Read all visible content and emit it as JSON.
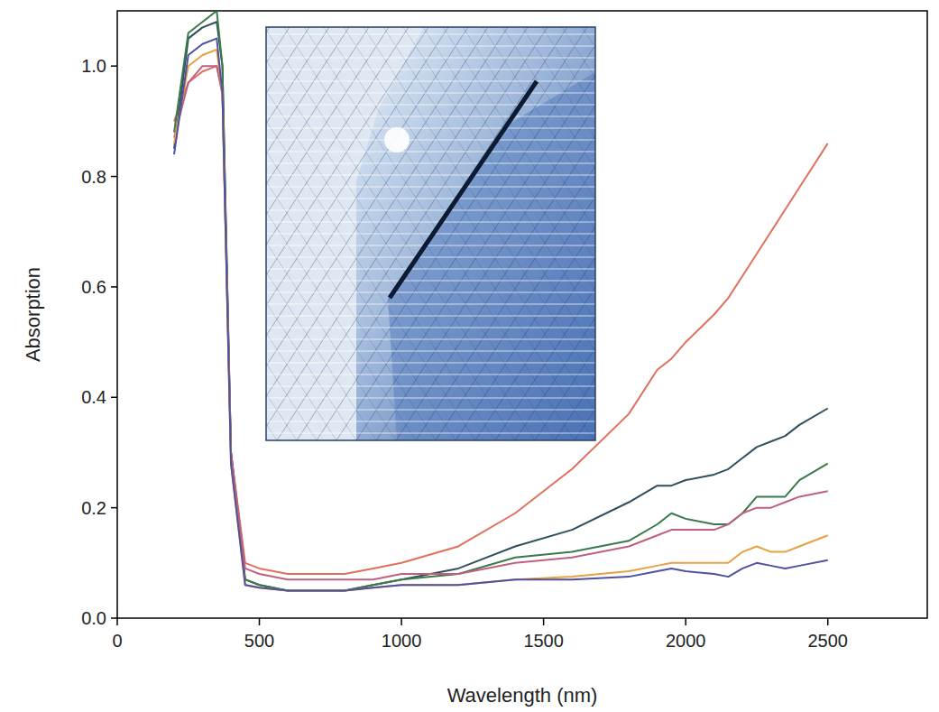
{
  "chart_data": {
    "type": "line",
    "x_label": "Wavelength (nm)",
    "y_label": "Absorption",
    "x": [
      200,
      250,
      300,
      350,
      370,
      400,
      450,
      500,
      600,
      700,
      800,
      900,
      1000,
      1200,
      1400,
      1600,
      1800,
      1900,
      1950,
      2000,
      2100,
      2150,
      2200,
      2250,
      2300,
      2350,
      2400,
      2500
    ],
    "series": [
      {
        "color": "#e0705e",
        "values": [
          0.9,
          0.97,
          0.99,
          1.0,
          0.95,
          0.3,
          0.1,
          0.09,
          0.08,
          0.08,
          0.08,
          0.09,
          0.1,
          0.13,
          0.19,
          0.27,
          0.37,
          0.45,
          0.47,
          0.5,
          0.55,
          0.58,
          0.62,
          0.66,
          0.7,
          0.74,
          0.78,
          0.86
        ]
      },
      {
        "color": "#2f4f5c",
        "values": [
          0.85,
          1.05,
          1.07,
          1.08,
          1.0,
          0.3,
          0.07,
          0.06,
          0.05,
          0.05,
          0.05,
          0.06,
          0.07,
          0.09,
          0.13,
          0.16,
          0.21,
          0.24,
          0.24,
          0.25,
          0.26,
          0.27,
          0.29,
          0.31,
          0.32,
          0.33,
          0.35,
          0.38
        ]
      },
      {
        "color": "#3a7a4a",
        "values": [
          0.88,
          1.06,
          1.08,
          1.1,
          1.0,
          0.3,
          0.07,
          0.06,
          0.05,
          0.05,
          0.05,
          0.06,
          0.07,
          0.08,
          0.11,
          0.12,
          0.14,
          0.17,
          0.19,
          0.18,
          0.17,
          0.17,
          0.19,
          0.22,
          0.22,
          0.22,
          0.25,
          0.28
        ]
      },
      {
        "color": "#c0607e",
        "values": [
          0.87,
          0.97,
          1.0,
          1.0,
          0.95,
          0.3,
          0.09,
          0.08,
          0.07,
          0.07,
          0.07,
          0.07,
          0.08,
          0.08,
          0.1,
          0.11,
          0.13,
          0.15,
          0.16,
          0.16,
          0.16,
          0.17,
          0.19,
          0.2,
          0.2,
          0.21,
          0.22,
          0.23
        ]
      },
      {
        "color": "#e8a040",
        "values": [
          0.86,
          1.0,
          1.02,
          1.03,
          0.95,
          0.28,
          0.06,
          0.055,
          0.05,
          0.05,
          0.05,
          0.055,
          0.06,
          0.06,
          0.07,
          0.075,
          0.085,
          0.095,
          0.1,
          0.1,
          0.1,
          0.1,
          0.12,
          0.13,
          0.12,
          0.12,
          0.13,
          0.15
        ]
      },
      {
        "color": "#5050a0",
        "values": [
          0.84,
          1.02,
          1.04,
          1.05,
          0.95,
          0.28,
          0.06,
          0.055,
          0.05,
          0.05,
          0.05,
          0.055,
          0.06,
          0.06,
          0.07,
          0.07,
          0.075,
          0.085,
          0.09,
          0.085,
          0.08,
          0.075,
          0.09,
          0.1,
          0.095,
          0.09,
          0.095,
          0.105
        ]
      }
    ],
    "xlim": [
      0,
      2850
    ],
    "xticks": [
      0,
      500,
      1000,
      1500,
      2000,
      2500
    ],
    "ylim": [
      0,
      1.1
    ],
    "yticks": [
      {
        "value": 0,
        "label": "0.0"
      },
      0.2,
      0.4,
      0.6,
      0.8,
      {
        "value": 1,
        "label": "1.0"
      }
    ],
    "grid": false
  }
}
